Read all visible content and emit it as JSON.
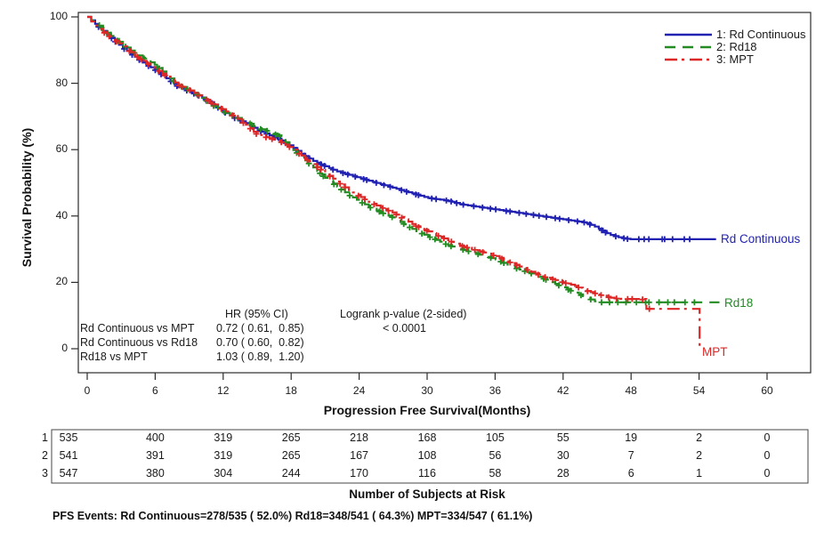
{
  "y_axis": {
    "label": "Survival Probability (%)",
    "ticks": [
      0,
      20,
      40,
      60,
      80,
      100
    ]
  },
  "x_axis": {
    "label": "Progression Free Survival(Months)",
    "ticks": [
      0,
      6,
      12,
      18,
      24,
      30,
      36,
      42,
      48,
      54,
      60
    ]
  },
  "legend": {
    "items": [
      {
        "label": "1: Rd Continuous"
      },
      {
        "label": "2: Rd18"
      },
      {
        "label": "3: MPT"
      }
    ]
  },
  "annotation": {
    "hr_header": "HR (95% CI)",
    "logrank_header": "Logrank p-value (2-sided)",
    "logrank_value": "< 0.0001",
    "rows": [
      {
        "label": "Rd Continuous vs MPT",
        "value": "0.72 ( 0.61,  0.85)"
      },
      {
        "label": "Rd Continuous vs Rd18",
        "value": "0.70 ( 0.60,  0.82)"
      },
      {
        "label": "Rd18 vs MPT",
        "value": "1.03 ( 0.89,  1.20)"
      }
    ]
  },
  "curve_labels": [
    {
      "text": "Rd Continuous"
    },
    {
      "text": "Rd18"
    },
    {
      "text": "MPT"
    }
  ],
  "risk_table": {
    "title": "Number of Subjects at Risk",
    "rows": [
      {
        "id": "1",
        "counts": [
          535,
          400,
          319,
          265,
          218,
          168,
          105,
          55,
          19,
          2,
          0
        ]
      },
      {
        "id": "2",
        "counts": [
          541,
          391,
          319,
          265,
          167,
          108,
          56,
          30,
          7,
          2,
          0
        ]
      },
      {
        "id": "3",
        "counts": [
          547,
          380,
          304,
          244,
          170,
          116,
          58,
          28,
          6,
          1,
          0
        ]
      }
    ]
  },
  "footnote": "PFS Events: Rd Continuous=278/535 ( 52.0%) Rd18=348/541 ( 64.3%) MPT=334/547 ( 61.1%)",
  "chart_data": {
    "type": "line",
    "subtype": "kaplan-meier-step",
    "title": "",
    "xlabel": "Progression Free Survival(Months)",
    "ylabel": "Survival Probability (%)",
    "xlim": [
      0,
      60
    ],
    "ylim": [
      0,
      100
    ],
    "x_ticks": [
      0,
      6,
      12,
      18,
      24,
      30,
      36,
      42,
      48,
      54,
      60
    ],
    "y_ticks": [
      0,
      20,
      40,
      60,
      80,
      100
    ],
    "grid": false,
    "legend_position": "top-right-inside",
    "series": [
      {
        "name": "Rd Continuous",
        "legend_label": "1: Rd Continuous",
        "color": "#2222b2",
        "dash": "solid",
        "censor_count": 80,
        "censor_range": [
          1,
          53.5
        ],
        "points": [
          [
            0,
            100
          ],
          [
            0.5,
            98.5
          ],
          [
            1,
            97
          ],
          [
            2,
            94
          ],
          [
            3,
            91
          ],
          [
            4,
            88.5
          ],
          [
            5,
            86
          ],
          [
            6,
            84
          ],
          [
            7,
            81.5
          ],
          [
            8,
            79
          ],
          [
            9,
            77.5
          ],
          [
            10,
            76
          ],
          [
            11,
            74
          ],
          [
            12,
            71.5
          ],
          [
            13,
            69.5
          ],
          [
            14,
            68
          ],
          [
            15,
            66
          ],
          [
            16,
            64.5
          ],
          [
            17,
            63
          ],
          [
            18,
            61
          ],
          [
            19,
            58.5
          ],
          [
            20,
            56.5
          ],
          [
            21,
            55
          ],
          [
            22,
            53.5
          ],
          [
            23,
            52.5
          ],
          [
            24,
            51.5
          ],
          [
            25,
            50.5
          ],
          [
            26,
            49.5
          ],
          [
            27,
            48.5
          ],
          [
            28,
            47.5
          ],
          [
            29,
            46.5
          ],
          [
            30,
            45.5
          ],
          [
            31,
            45
          ],
          [
            32,
            44.5
          ],
          [
            33,
            43.5
          ],
          [
            34,
            43
          ],
          [
            35,
            42.5
          ],
          [
            36,
            42
          ],
          [
            37,
            41.5
          ],
          [
            38,
            41
          ],
          [
            39,
            40.5
          ],
          [
            40,
            40
          ],
          [
            41,
            39.5
          ],
          [
            42,
            39
          ],
          [
            43,
            38.5
          ],
          [
            44,
            38
          ],
          [
            45,
            36.5
          ],
          [
            46,
            34.5
          ],
          [
            47,
            33.5
          ],
          [
            47.8,
            33
          ],
          [
            55.5,
            33
          ]
        ]
      },
      {
        "name": "Rd18",
        "legend_label": "2: Rd18",
        "color": "#228b22",
        "dash": "dashed",
        "censor_count": 70,
        "censor_range": [
          1,
          54
        ],
        "points": [
          [
            0,
            100
          ],
          [
            0.5,
            98.5
          ],
          [
            1,
            97.5
          ],
          [
            2,
            94.5
          ],
          [
            3,
            92
          ],
          [
            4,
            89.5
          ],
          [
            5,
            87.5
          ],
          [
            6,
            85.5
          ],
          [
            7,
            82.5
          ],
          [
            8,
            79.5
          ],
          [
            9,
            78
          ],
          [
            10,
            76
          ],
          [
            11,
            73.5
          ],
          [
            12,
            71.5
          ],
          [
            13,
            70
          ],
          [
            14,
            68.5
          ],
          [
            15,
            66.5
          ],
          [
            16,
            65.5
          ],
          [
            17,
            64
          ],
          [
            18,
            60.5
          ],
          [
            19,
            57.5
          ],
          [
            20,
            54.5
          ],
          [
            21,
            51.5
          ],
          [
            22,
            49
          ],
          [
            23,
            46.5
          ],
          [
            24,
            44.5
          ],
          [
            25,
            42.5
          ],
          [
            26,
            41
          ],
          [
            27,
            39.5
          ],
          [
            28,
            37.5
          ],
          [
            29,
            35.5
          ],
          [
            30,
            34
          ],
          [
            31,
            32.5
          ],
          [
            32,
            31
          ],
          [
            33,
            30
          ],
          [
            34,
            29
          ],
          [
            35,
            28
          ],
          [
            36,
            27
          ],
          [
            37,
            25.5
          ],
          [
            38,
            24
          ],
          [
            39,
            23
          ],
          [
            40,
            21.5
          ],
          [
            41,
            20
          ],
          [
            42,
            18.5
          ],
          [
            43,
            17
          ],
          [
            44,
            15.5
          ],
          [
            45,
            14
          ],
          [
            55.8,
            14
          ]
        ]
      },
      {
        "name": "MPT",
        "legend_label": "3: MPT",
        "color": "#dd2727",
        "dash": "dashdot",
        "censor_count": 68,
        "censor_range": [
          1,
          50
        ],
        "points": [
          [
            0,
            100
          ],
          [
            0.5,
            98
          ],
          [
            1,
            96.5
          ],
          [
            2,
            94
          ],
          [
            3,
            91.5
          ],
          [
            4,
            89
          ],
          [
            5,
            86.5
          ],
          [
            6,
            84.5
          ],
          [
            7,
            82
          ],
          [
            8,
            79.5
          ],
          [
            9,
            78
          ],
          [
            10,
            76
          ],
          [
            11,
            74
          ],
          [
            12,
            72
          ],
          [
            13,
            70
          ],
          [
            14,
            67.5
          ],
          [
            15,
            64.5
          ],
          [
            16,
            63.5
          ],
          [
            17,
            62.5
          ],
          [
            18,
            60.5
          ],
          [
            19,
            58
          ],
          [
            20,
            55.5
          ],
          [
            21,
            53
          ],
          [
            22,
            50.5
          ],
          [
            23,
            48
          ],
          [
            24,
            46
          ],
          [
            25,
            44
          ],
          [
            26,
            42.5
          ],
          [
            27,
            41
          ],
          [
            28,
            39
          ],
          [
            29,
            37
          ],
          [
            30,
            35.5
          ],
          [
            31,
            34
          ],
          [
            32,
            32.5
          ],
          [
            33,
            31
          ],
          [
            34,
            30
          ],
          [
            35,
            29
          ],
          [
            36,
            28
          ],
          [
            37,
            26.5
          ],
          [
            38,
            25
          ],
          [
            39,
            23.5
          ],
          [
            40,
            22
          ],
          [
            41,
            21
          ],
          [
            42,
            20
          ],
          [
            43,
            19
          ],
          [
            44,
            17.5
          ],
          [
            45,
            16.5
          ],
          [
            46,
            15.5
          ],
          [
            47,
            15
          ],
          [
            49,
            15
          ],
          [
            49.3,
            12
          ],
          [
            54,
            12
          ],
          [
            54.05,
            0.5
          ]
        ]
      }
    ]
  }
}
